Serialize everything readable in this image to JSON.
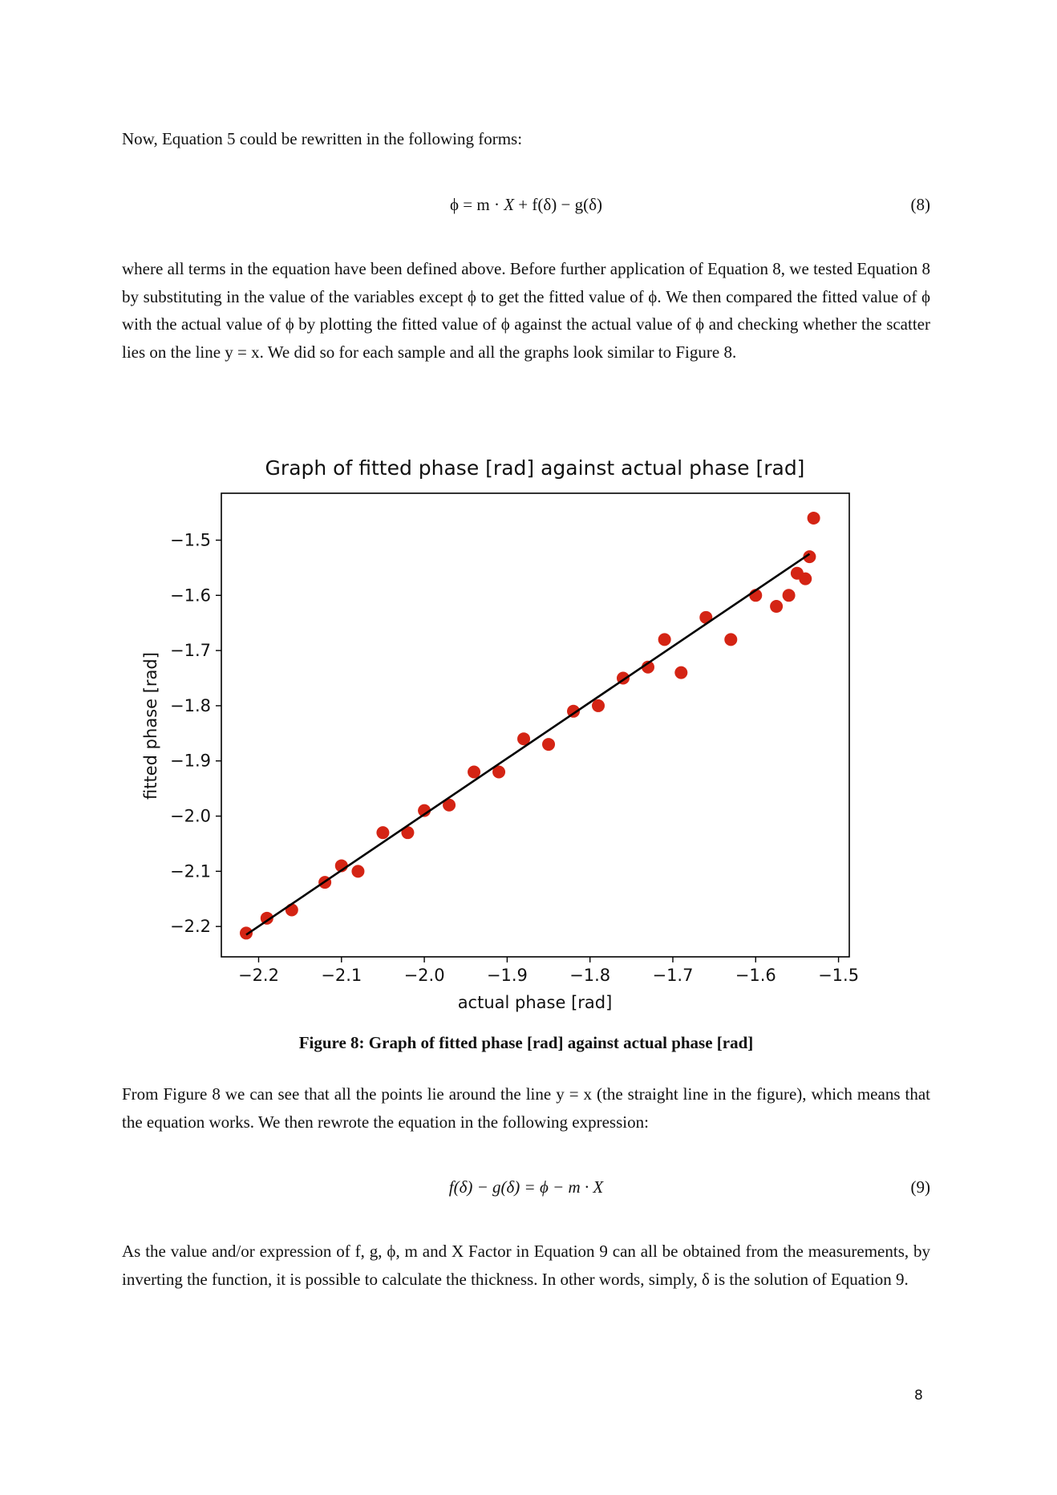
{
  "paragraphs": {
    "intro": "Now, Equation 5 could be rewritten in the following forms:",
    "after_eq8": "where all terms in the equation have been defined above. Before further application of Equation 8, we tested Equation 8 by substituting in the value of the variables except ϕ to get the fitted value of ϕ. We then compared the fitted value of ϕ with the actual value of ϕ by plotting the fitted value of ϕ against the actual value of ϕ and checking whether the scatter lies on the line y = x. We did so for each sample and all the graphs look similar to Figure 8.",
    "after_figure": "From Figure 8 we can see that all the points lie around the line y = x (the straight line in the figure), which means that the equation works. We then rewrote the equation in the following expression:",
    "conclusion": "As the value and/or expression of f, g, ϕ, m and X Factor in Equation 9 can all be obtained from the measurements, by inverting the function, it is possible to calculate the thickness. In other words, simply, δ is the solution of Equation 9."
  },
  "equations": {
    "eq8": {
      "lhs": "ϕ = m · ",
      "var": "X",
      "rhs": " + f(δ) − g(δ)",
      "number": "(8)"
    },
    "eq9": {
      "text": "f(δ) − g(δ) = ϕ − m · X",
      "number": "(9)"
    }
  },
  "figure": {
    "caption": "Figure 8: Graph of fitted phase [rad] against actual phase [rad]"
  },
  "chart_data": {
    "type": "scatter",
    "title": "Graph of fitted phase [rad] against actual phase [rad]",
    "xlabel": "actual phase [rad]",
    "ylabel": "fitted phase [rad]",
    "xlim": [
      -2.245,
      -1.487
    ],
    "ylim": [
      -2.255,
      -1.415
    ],
    "xticks": [
      -2.2,
      -2.1,
      -2.0,
      -1.9,
      -1.8,
      -1.7,
      -1.6,
      -1.5
    ],
    "yticks": [
      -2.2,
      -2.1,
      -2.0,
      -1.9,
      -1.8,
      -1.7,
      -1.6,
      -1.5
    ],
    "xtick_labels": [
      "−2.2",
      "−2.1",
      "−2.0",
      "−1.9",
      "−1.8",
      "−1.7",
      "−1.6",
      "−1.5"
    ],
    "ytick_labels": [
      "−2.2",
      "−2.1",
      "−2.0",
      "−1.9",
      "−1.8",
      "−1.7",
      "−1.6",
      "−1.5"
    ],
    "grid": false,
    "series": [
      {
        "kind": "scatter",
        "color": "#d42414",
        "x": [
          -2.215,
          -2.19,
          -2.16,
          -2.12,
          -2.1,
          -2.08,
          -2.05,
          -2.02,
          -2.0,
          -1.97,
          -1.94,
          -1.91,
          -1.88,
          -1.85,
          -1.82,
          -1.79,
          -1.76,
          -1.73,
          -1.71,
          -1.69,
          -1.66,
          -1.63,
          -1.6,
          -1.575,
          -1.56,
          -1.55,
          -1.54,
          -1.535,
          -1.53
        ],
        "y": [
          -2.212,
          -2.185,
          -2.17,
          -2.12,
          -2.09,
          -2.1,
          -2.03,
          -2.03,
          -1.99,
          -1.98,
          -1.92,
          -1.92,
          -1.86,
          -1.87,
          -1.81,
          -1.8,
          -1.75,
          -1.73,
          -1.68,
          -1.74,
          -1.64,
          -1.68,
          -1.6,
          -1.62,
          -1.6,
          -1.56,
          -1.57,
          -1.53,
          -1.46
        ]
      },
      {
        "kind": "line",
        "color": "#000000",
        "x": [
          -2.215,
          -1.535
        ],
        "y": [
          -2.215,
          -1.525
        ]
      }
    ]
  },
  "page_number": "8"
}
